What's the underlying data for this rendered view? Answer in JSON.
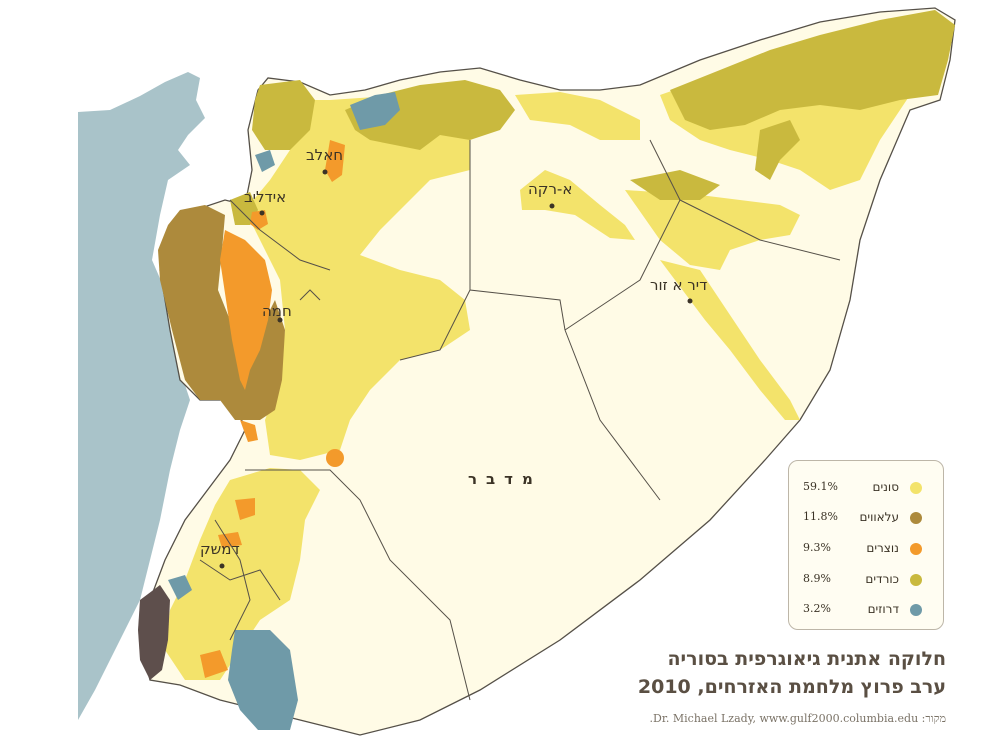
{
  "map": {
    "cities": [
      {
        "name": "חאלב"
      },
      {
        "name": "אידליב"
      },
      {
        "name": "א-רקה"
      },
      {
        "name": "דיר א זור"
      },
      {
        "name": "חמה"
      },
      {
        "name": "דמשק"
      }
    ],
    "desert_label": "מדבר"
  },
  "legend": {
    "items": [
      {
        "name": "סונים",
        "percent": "59.1%",
        "color": "#f3e36b"
      },
      {
        "name": "עלאווים",
        "percent": "11.8%",
        "color": "#ad8a3c"
      },
      {
        "name": "נוצרים",
        "percent": "9.3%",
        "color": "#f39a2b"
      },
      {
        "name": "כורדים",
        "percent": "8.9%",
        "color": "#c9b93e"
      },
      {
        "name": "דרוזים",
        "percent": "3.2%",
        "color": "#6f9aa8"
      }
    ]
  },
  "colors": {
    "sea": "#a9c3c9",
    "land": "#fffbe6",
    "border": "#555048",
    "other_group": "#5e4f4c"
  },
  "title": {
    "line1": "חלוקה אתנית גיאוגרפית בסוריה",
    "line2": "ערב פרוץ מלחמת האזרחים, 2010"
  },
  "source": "מקור: Dr. Michael Lzady, www.gulf2000.columbia.edu."
}
